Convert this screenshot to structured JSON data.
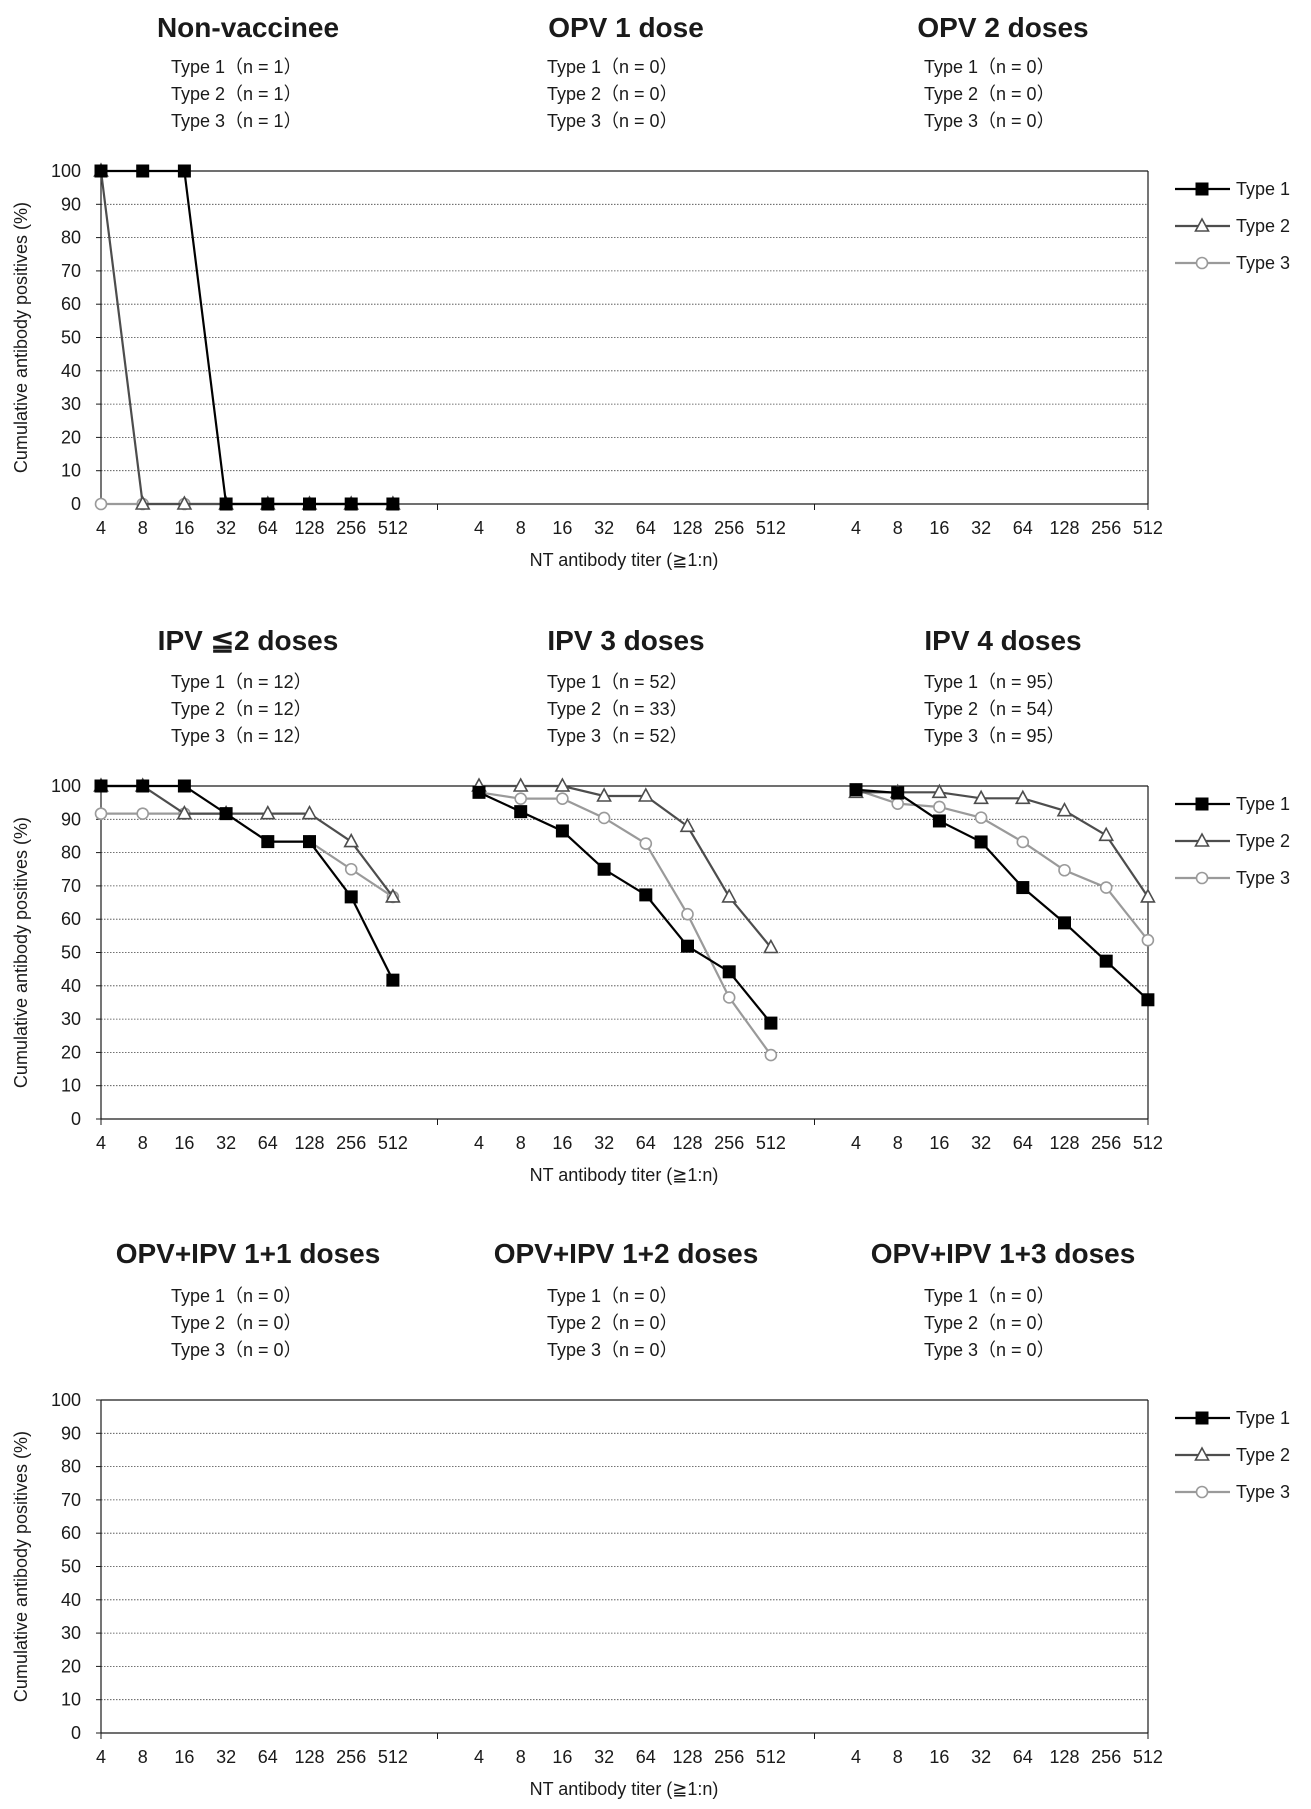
{
  "chart_data": [
    {
      "type": "line",
      "ylabel": "Cumulative antibody positives (%)",
      "xlabel": "NT antibody titer (≧1:n)",
      "ylim": [
        0,
        100
      ],
      "yticks": [
        0,
        10,
        20,
        30,
        40,
        50,
        60,
        70,
        80,
        90,
        100
      ],
      "categories": [
        "4",
        "8",
        "16",
        "32",
        "64",
        "128",
        "256",
        "512"
      ],
      "grid": true,
      "legend": {
        "position": "right",
        "entries": [
          "Type 1",
          "Type 2",
          "Type 3"
        ]
      },
      "panels": [
        {
          "title": "Non-vaccinee",
          "counts": [
            "Type 1（n = 1）",
            "Type 2（n = 1）",
            "Type 3（n = 1）"
          ],
          "series": [
            {
              "name": "Type 1",
              "values": [
                100,
                100,
                100,
                0,
                0,
                0,
                0,
                0
              ]
            },
            {
              "name": "Type 2",
              "values": [
                100,
                0,
                0,
                0,
                0,
                0,
                0,
                0
              ]
            },
            {
              "name": "Type 3",
              "values": [
                0,
                0,
                0,
                0,
                0,
                0,
                0,
                0
              ]
            }
          ]
        },
        {
          "title": "OPV 1 dose",
          "counts": [
            "Type 1（n = 0）",
            "Type 2（n = 0）",
            "Type 3（n = 0）"
          ],
          "series": []
        },
        {
          "title": "OPV 2 doses",
          "counts": [
            "Type 1（n = 0）",
            "Type 2（n = 0）",
            "Type 3（n = 0）"
          ],
          "series": []
        }
      ]
    },
    {
      "type": "line",
      "ylabel": "Cumulative antibody positives (%)",
      "xlabel": "NT antibody titer (≧1:n)",
      "ylim": [
        0,
        100
      ],
      "yticks": [
        0,
        10,
        20,
        30,
        40,
        50,
        60,
        70,
        80,
        90,
        100
      ],
      "categories": [
        "4",
        "8",
        "16",
        "32",
        "64",
        "128",
        "256",
        "512"
      ],
      "grid": true,
      "legend": {
        "position": "right",
        "entries": [
          "Type 1",
          "Type 2",
          "Type 3"
        ]
      },
      "panels": [
        {
          "title": "IPV ≦2 doses",
          "counts": [
            "Type 1（n = 12）",
            "Type 2（n = 12）",
            "Type 3（n = 12）"
          ],
          "series": [
            {
              "name": "Type 1",
              "values": [
                100,
                100,
                100,
                91.7,
                83.3,
                83.3,
                66.7,
                41.7
              ]
            },
            {
              "name": "Type 2",
              "values": [
                100,
                100,
                91.7,
                91.7,
                91.7,
                91.7,
                83.3,
                66.7
              ]
            },
            {
              "name": "Type 3",
              "values": [
                91.7,
                91.7,
                91.7,
                91.7,
                83.3,
                83.3,
                75,
                66.7
              ]
            }
          ]
        },
        {
          "title": "IPV 3 doses",
          "counts": [
            "Type 1（n = 52）",
            "Type 2（n = 33）",
            "Type 3（n = 52）"
          ],
          "series": [
            {
              "name": "Type 1",
              "values": [
                98.1,
                92.3,
                86.5,
                75,
                67.3,
                51.9,
                44.2,
                28.8
              ]
            },
            {
              "name": "Type 2",
              "values": [
                100,
                100,
                100,
                97,
                97,
                87.9,
                66.7,
                51.5
              ]
            },
            {
              "name": "Type 3",
              "values": [
                98.1,
                96.2,
                96.2,
                90.4,
                82.7,
                61.5,
                36.5,
                19.2
              ]
            }
          ]
        },
        {
          "title": "IPV 4 doses",
          "counts": [
            "Type 1（n = 95）",
            "Type 2（n = 54）",
            "Type 3（n = 95）"
          ],
          "series": [
            {
              "name": "Type 1",
              "values": [
                98.9,
                97.9,
                89.5,
                83.2,
                69.5,
                58.9,
                47.4,
                35.8
              ]
            },
            {
              "name": "Type 2",
              "values": [
                98.1,
                98.1,
                98.1,
                96.3,
                96.3,
                92.6,
                85.2,
                66.7
              ]
            },
            {
              "name": "Type 3",
              "values": [
                98.9,
                94.7,
                93.7,
                90.5,
                83.2,
                74.7,
                69.5,
                53.7
              ]
            }
          ]
        }
      ]
    },
    {
      "type": "line",
      "ylabel": "Cumulative antibody positives (%)",
      "xlabel": "NT antibody titer (≧1:n)",
      "ylim": [
        0,
        100
      ],
      "yticks": [
        0,
        10,
        20,
        30,
        40,
        50,
        60,
        70,
        80,
        90,
        100
      ],
      "categories": [
        "4",
        "8",
        "16",
        "32",
        "64",
        "128",
        "256",
        "512"
      ],
      "grid": true,
      "legend": {
        "position": "right",
        "entries": [
          "Type 1",
          "Type 2",
          "Type 3"
        ]
      },
      "panels": [
        {
          "title": "OPV+IPV 1+1 doses",
          "counts": [
            "Type 1（n = 0）",
            "Type 2（n = 0）",
            "Type 3（n = 0）"
          ],
          "series": []
        },
        {
          "title": "OPV+IPV 1+2 doses",
          "counts": [
            "Type 1（n = 0）",
            "Type 2（n = 0）",
            "Type 3（n = 0）"
          ],
          "series": []
        },
        {
          "title": "OPV+IPV 1+3 doses",
          "counts": [
            "Type 1（n = 0）",
            "Type 2（n = 0）",
            "Type 3（n = 0）"
          ],
          "series": []
        }
      ]
    }
  ]
}
